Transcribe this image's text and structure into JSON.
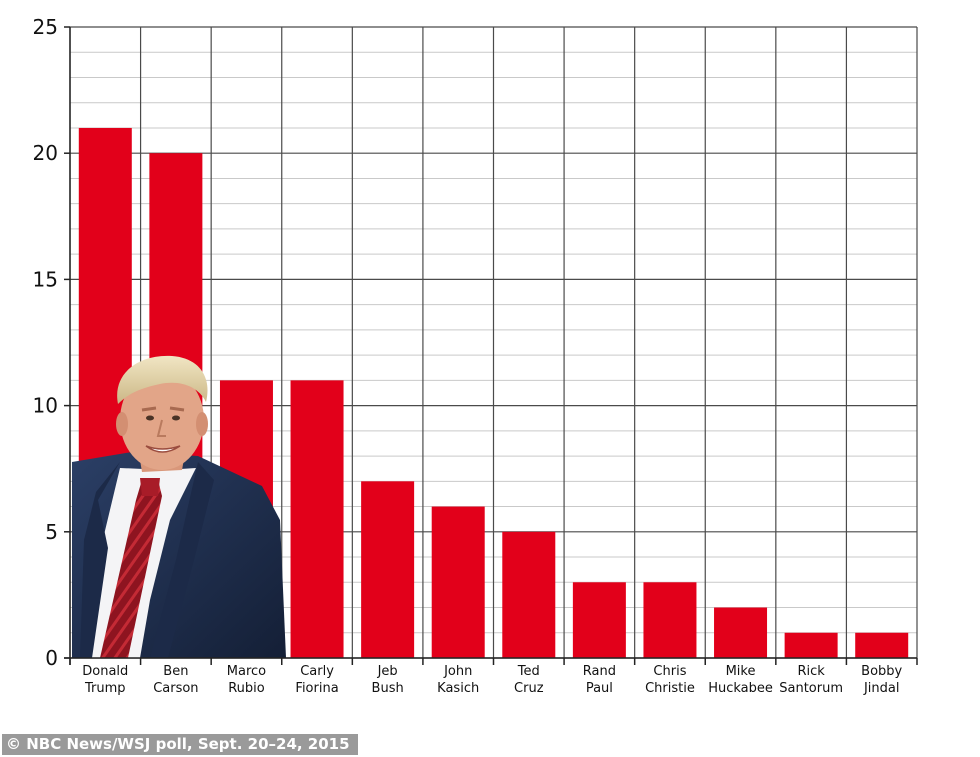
{
  "chart_data": {
    "type": "bar",
    "categories": [
      [
        "Donald",
        "Trump"
      ],
      [
        "Ben",
        "Carson"
      ],
      [
        "Marco",
        "Rubio"
      ],
      [
        "Carly",
        "Fiorina"
      ],
      [
        "Jeb",
        "Bush"
      ],
      [
        "John",
        "Kasich"
      ],
      [
        "Ted",
        "Cruz"
      ],
      [
        "Rand",
        "Paul"
      ],
      [
        "Chris",
        "Christie"
      ],
      [
        "Mike",
        "Huckabee"
      ],
      [
        "Rick",
        "Santorum"
      ],
      [
        "Bobby",
        "Jindal"
      ]
    ],
    "values": [
      21,
      20,
      11,
      11,
      7,
      6,
      5,
      3,
      3,
      2,
      1,
      1
    ],
    "ylim": [
      0,
      25
    ],
    "yticks": [
      0,
      5,
      10,
      15,
      20,
      25
    ],
    "minor_grid_step": 1,
    "grid": true,
    "bar_color": "#e2001a",
    "title": "",
    "xlabel": "",
    "ylabel": ""
  },
  "overlay_photo": {
    "subject": "Donald Trump portrait"
  },
  "credit": "© NBC News/WSJ poll, Sept. 20–24, 2015"
}
